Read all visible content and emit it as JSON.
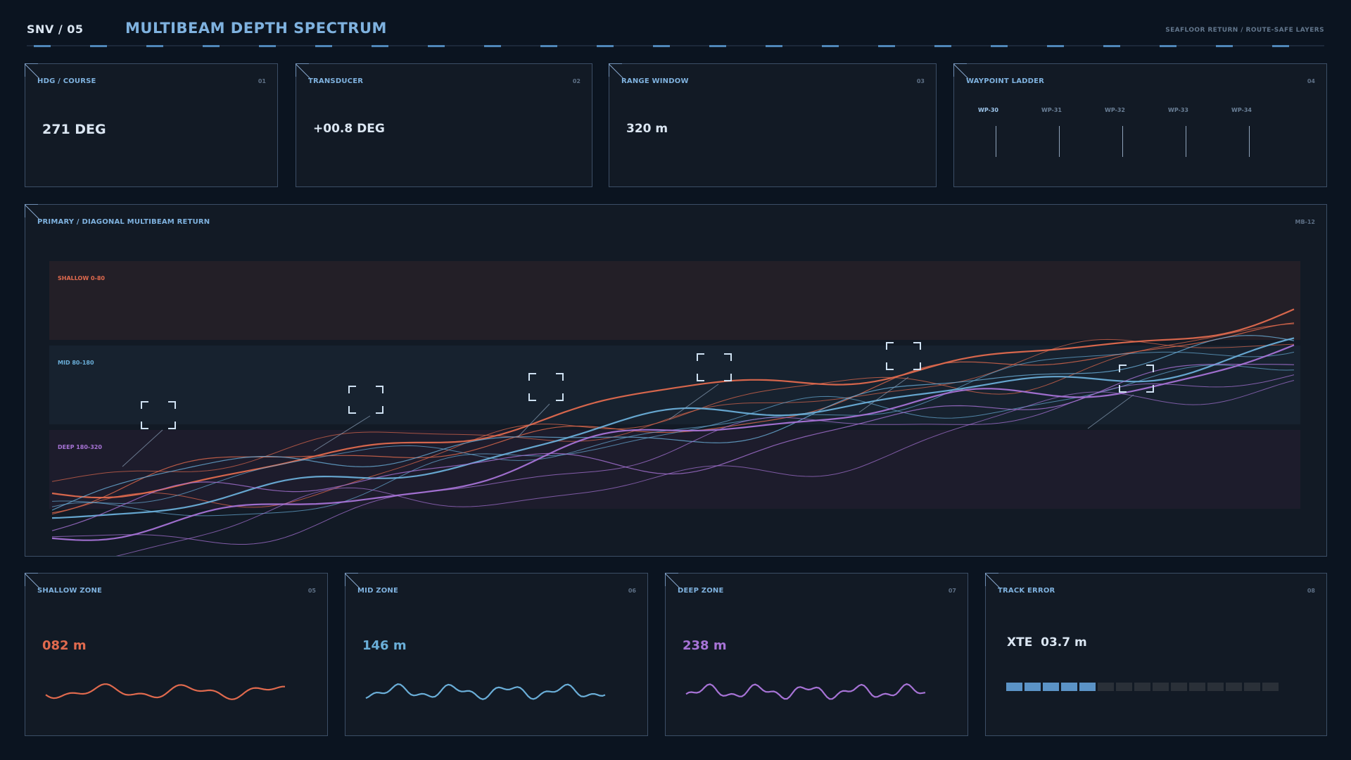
{
  "header": {
    "left": "SNV / 05",
    "title": "MULTIBEAM DEPTH SPECTRUM",
    "right": "SEAFLOOR RETURN / ROUTE-SAFE LAYERS"
  },
  "colors": {
    "shallow": "#e06a4e",
    "mid": "#6aaed8",
    "deep": "#a773d6",
    "accent": "#7fb2df"
  },
  "panels": {
    "heading": {
      "label": "HDG / COURSE",
      "num": "01",
      "value": "271 DEG"
    },
    "transducer": {
      "label": "TRANSDUCER",
      "num": "02",
      "value": "+00.8 DEG"
    },
    "range": {
      "label": "RANGE WINDOW",
      "num": "03",
      "value": "320 m"
    },
    "waypoints": {
      "label": "WAYPOINT LADDER",
      "num": "04",
      "items": [
        "WP-30",
        "WP-31",
        "WP-32",
        "WP-33",
        "WP-34"
      ]
    },
    "main": {
      "label": "PRIMARY / DIAGONAL MULTIBEAM RETURN",
      "num": "MB-12"
    },
    "shallow": {
      "label": "SHALLOW ZONE",
      "num": "05",
      "value": "082 m"
    },
    "mid": {
      "label": "MID ZONE",
      "num": "06",
      "value": "146 m"
    },
    "deep": {
      "label": "DEEP ZONE",
      "num": "07",
      "value": "238 m"
    },
    "track": {
      "label": "TRACK ERROR",
      "num": "08",
      "value": "XTE  03.7 m",
      "segments_total": 15,
      "segments_filled": 5
    }
  },
  "chart_data": {
    "type": "line",
    "bands": [
      {
        "label": "SHALLOW 0-80",
        "color": "#e06a4e"
      },
      {
        "label": "MID 80-180",
        "color": "#6aaed8"
      },
      {
        "label": "DEEP 180-320",
        "color": "#a773d6"
      }
    ]
  }
}
